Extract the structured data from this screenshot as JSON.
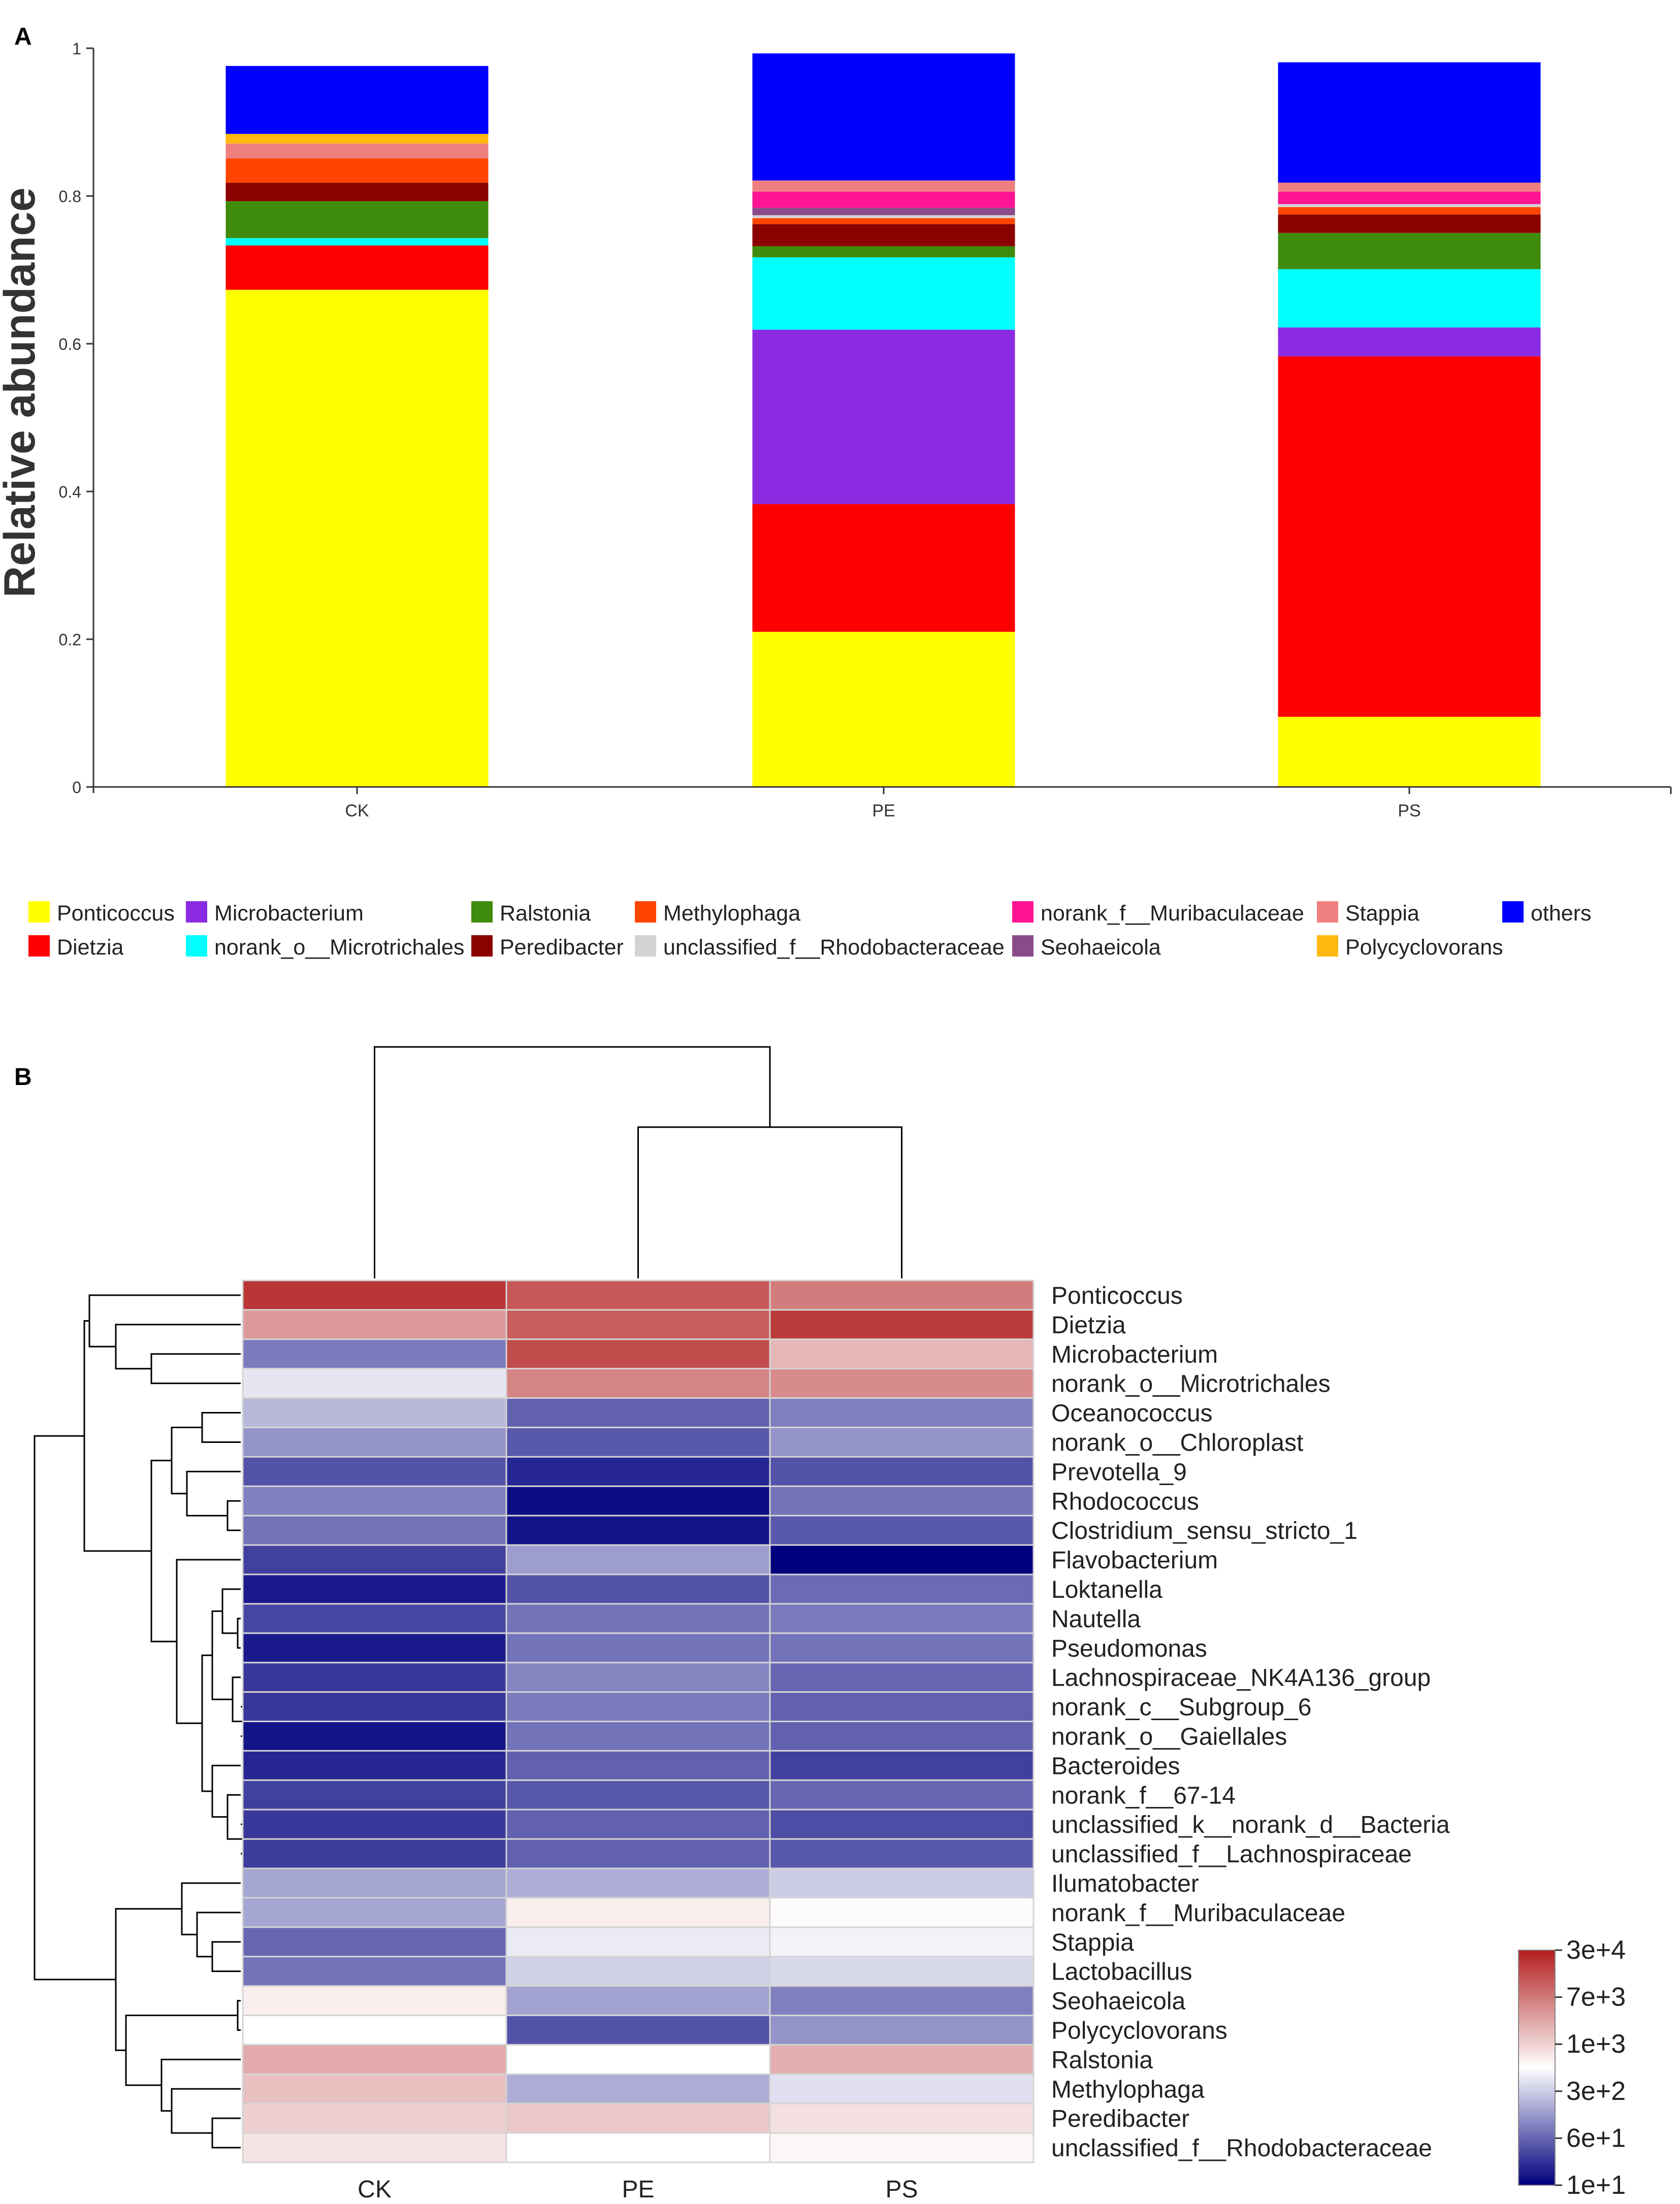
{
  "chart_data": [
    {
      "panel": "A",
      "type": "bar",
      "stacked": true,
      "ylabel": "Relative abundance",
      "xlabel": "",
      "ylim": [
        0,
        1
      ],
      "yticks": [
        "0",
        "0.2",
        "0.4",
        "0.6",
        "0.8",
        "1"
      ],
      "categories": [
        "CK",
        "PE",
        "PS"
      ],
      "legend_position": "bottom",
      "legend_rows": [
        [
          "Ponticoccus",
          "Microbacterium",
          "Ralstonia",
          "Methylophaga",
          "norank_f__Muribaculaceae",
          "Stappia",
          "others"
        ],
        [
          "Dietzia",
          "norank_o__Microtrichales",
          "Peredibacter",
          "unclassified_f__Rhodobacteraceae",
          "Seohaeicola",
          "Polycyclovorans"
        ]
      ],
      "series": [
        {
          "name": "Ponticoccus",
          "color": "#ffff00",
          "values": [
            0.673,
            0.21,
            0.095
          ]
        },
        {
          "name": "Dietzia",
          "color": "#ff0000",
          "values": [
            0.06,
            0.173,
            0.488
          ]
        },
        {
          "name": "Microbacterium",
          "color": "#8a2be2",
          "values": [
            0.0,
            0.236,
            0.039
          ]
        },
        {
          "name": "norank_o__Microtrichales",
          "color": "#00ffff",
          "values": [
            0.01,
            0.098,
            0.079
          ]
        },
        {
          "name": "Ralstonia",
          "color": "#3f8b0c",
          "values": [
            0.05,
            0.015,
            0.049
          ]
        },
        {
          "name": "Peredibacter",
          "color": "#8b0000",
          "values": [
            0.025,
            0.03,
            0.025
          ]
        },
        {
          "name": "Methylophaga",
          "color": "#ff4500",
          "values": [
            0.033,
            0.008,
            0.01
          ]
        },
        {
          "name": "unclassified_f__Rhodobacteraceae",
          "color": "#d3d3d3",
          "values": [
            0.0,
            0.004,
            0.004
          ]
        },
        {
          "name": "Seohaeicola",
          "color": "#8b4b8b",
          "values": [
            0.0,
            0.01,
            0.0
          ]
        },
        {
          "name": "norank_f__Muribaculaceae",
          "color": "#ff1493",
          "values": [
            0.0,
            0.022,
            0.017
          ]
        },
        {
          "name": "Stappia",
          "color": "#f08080",
          "values": [
            0.02,
            0.015,
            0.012
          ]
        },
        {
          "name": "Polycyclovorans",
          "color": "#ffb90f",
          "values": [
            0.013,
            0.0,
            0.0
          ]
        },
        {
          "name": "others",
          "color": "#0000ff",
          "values": [
            0.092,
            0.172,
            0.163
          ]
        }
      ]
    },
    {
      "panel": "B",
      "type": "heatmap",
      "columns": [
        "CK",
        "PE",
        "PS"
      ],
      "rows": [
        "Ponticoccus",
        "Dietzia",
        "Microbacterium",
        "norank_o__Microtrichales",
        "Oceanococcus",
        "norank_o__Chloroplast",
        "Prevotella_9",
        "Rhodococcus",
        "Clostridium_sensu_stricto_1",
        "Flavobacterium",
        "Loktanella",
        "Nautella",
        "Pseudomonas",
        "Lachnospiraceae_NK4A136_group",
        "norank_c__Subgroup_6",
        "norank_o__Gaiellales",
        "Bacteroides",
        "norank_f__67-14",
        "unclassified_k__norank_d__Bacteria",
        "unclassified_f__Lachnospiraceae",
        "Ilumatobacter",
        "norank_f__Muribaculaceae",
        "Stappia",
        "Lactobacillus",
        "Seohaeicola",
        "Polycyclovorans",
        "Ralstonia",
        "Methylophaga",
        "Peredibacter",
        "unclassified_f__Rhodobacteraceae"
      ],
      "values": [
        [
          0.9,
          0.75,
          0.58
        ],
        [
          0.45,
          0.72,
          0.88
        ],
        [
          -0.52,
          0.8,
          0.32
        ],
        [
          -0.1,
          0.55,
          0.52
        ],
        [
          -0.28,
          -0.62,
          -0.5
        ],
        [
          -0.42,
          -0.65,
          -0.42
        ],
        [
          -0.68,
          -0.85,
          -0.68
        ],
        [
          -0.5,
          -0.95,
          -0.55
        ],
        [
          -0.55,
          -0.92,
          -0.65
        ],
        [
          -0.75,
          -0.38,
          -1.0
        ],
        [
          -0.9,
          -0.68,
          -0.58
        ],
        [
          -0.72,
          -0.55,
          -0.52
        ],
        [
          -0.9,
          -0.55,
          -0.55
        ],
        [
          -0.78,
          -0.48,
          -0.6
        ],
        [
          -0.78,
          -0.52,
          -0.62
        ],
        [
          -0.92,
          -0.55,
          -0.62
        ],
        [
          -0.85,
          -0.62,
          -0.75
        ],
        [
          -0.75,
          -0.66,
          -0.6
        ],
        [
          -0.78,
          -0.62,
          -0.7
        ],
        [
          -0.76,
          -0.62,
          -0.66
        ],
        [
          -0.35,
          -0.32,
          -0.2
        ],
        [
          -0.35,
          0.08,
          0.02
        ],
        [
          -0.6,
          -0.08,
          -0.05
        ],
        [
          -0.55,
          -0.18,
          -0.15
        ],
        [
          0.08,
          -0.36,
          -0.5
        ],
        [
          0.0,
          -0.68,
          -0.42
        ],
        [
          0.38,
          0.0,
          0.36
        ],
        [
          0.28,
          -0.32,
          -0.12
        ],
        [
          0.22,
          0.25,
          0.14
        ],
        [
          0.12,
          0.0,
          0.04
        ]
      ],
      "color_scale": {
        "low": "#00007f",
        "mid": "#ffffff",
        "high": "#b21f1f"
      },
      "colorbar_labels": [
        "3e+4",
        "7e+3",
        "1e+3",
        "3e+2",
        "6e+1",
        "1e+1"
      ],
      "column_tree": "((CK),((PE),(PS)))"
    }
  ]
}
